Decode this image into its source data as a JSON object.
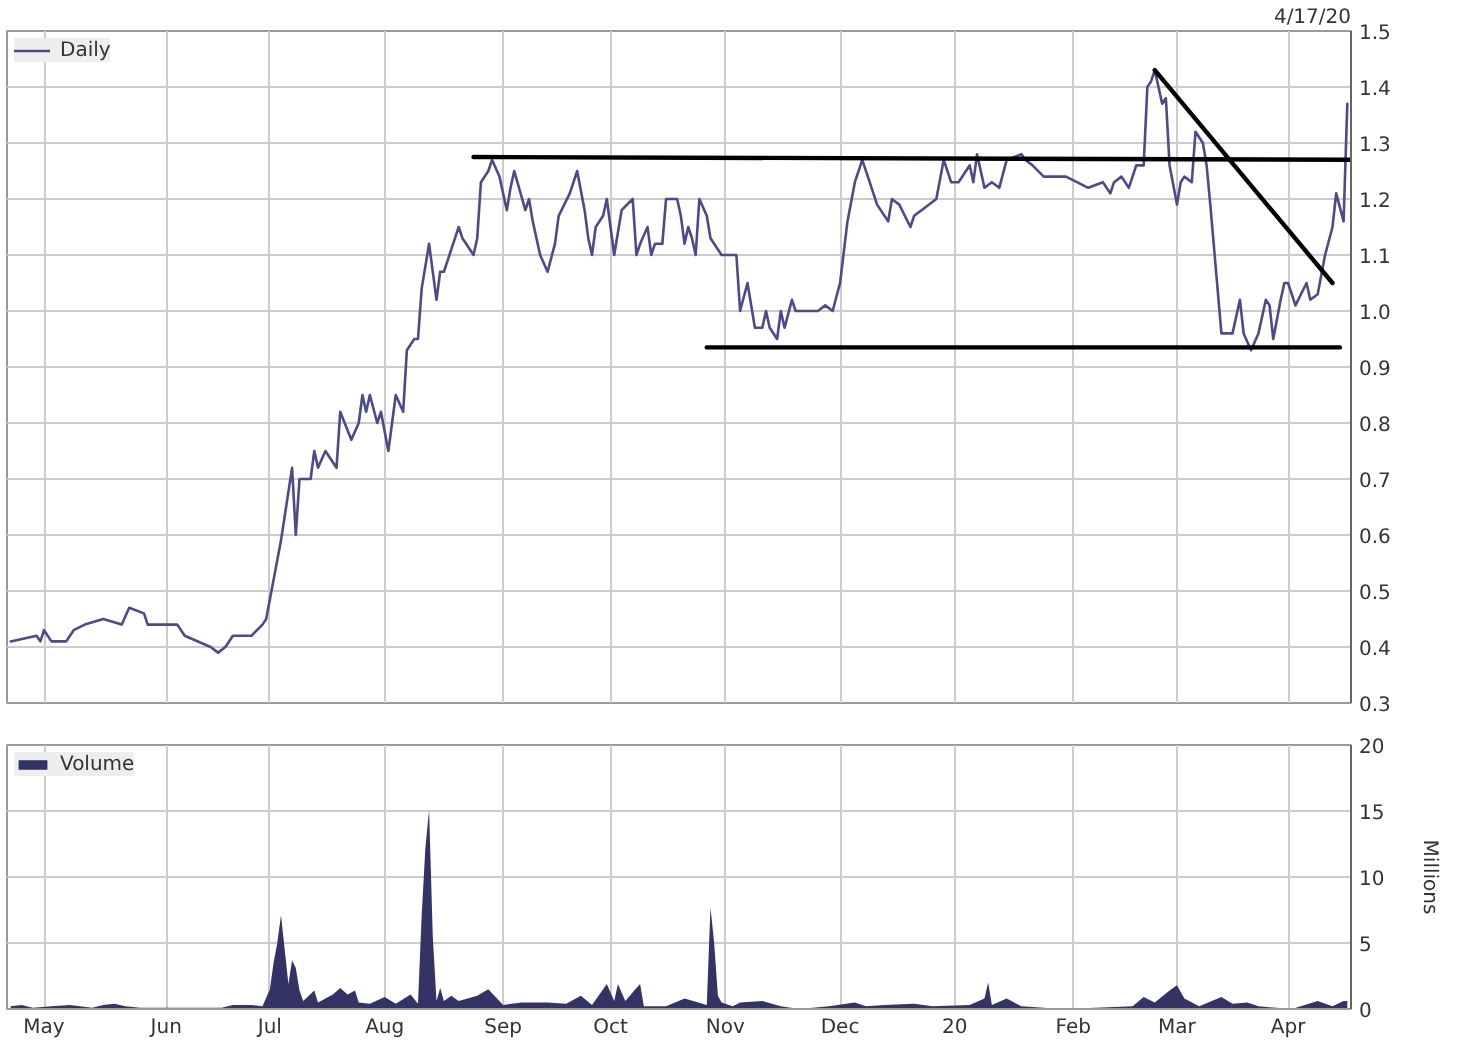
{
  "chart_data": [
    {
      "type": "line",
      "legend": "top left",
      "grid": true,
      "tick_labels": "y",
      "annotations": [
        "4/17/20"
      ],
      "xlim": [
        "2019-04-21",
        "2020-04-18"
      ],
      "ylim": [
        0.3,
        1.5
      ],
      "xticks": [
        {
          "value": "2019-05-01",
          "label": null
        },
        {
          "value": "2019-06-03",
          "label": null
        },
        {
          "value": "2019-07-01",
          "label": null
        },
        {
          "value": "2019-08-01",
          "label": null
        },
        {
          "value": "2019-09-02",
          "label": null
        },
        {
          "value": "2019-10-01",
          "label": null
        },
        {
          "value": "2019-11-01",
          "label": null
        },
        {
          "value": "2019-12-02",
          "label": null
        },
        {
          "value": "2020-01-02",
          "label": null
        },
        {
          "value": "2020-02-03",
          "label": null
        },
        {
          "value": "2020-03-02",
          "label": null
        },
        {
          "value": "2020-04-01",
          "label": null
        }
      ],
      "yticks": [
        0.3,
        0.4,
        0.5,
        0.6,
        0.7,
        0.8,
        0.9,
        {
          "value": 1,
          "label": "1.0"
        },
        1.1,
        1.2,
        1.3,
        1.4,
        1.5
      ],
      "series": [
        {
          "name": "Daily",
          "color": "#4b4b8a",
          "x": [
            "2019-04-22",
            "2019-04-29",
            "2019-04-30",
            "2019-05-01",
            "2019-05-03",
            "2019-05-07",
            "2019-05-09",
            "2019-05-12",
            "2019-05-17",
            "2019-05-22",
            "2019-05-24",
            "2019-05-28",
            "2019-05-29",
            "2019-06-02",
            "2019-06-06",
            "2019-06-08",
            "2019-06-15",
            "2019-06-17",
            "2019-06-19",
            "2019-06-21",
            "2019-06-26",
            "2019-06-29",
            "2019-06-30",
            "2019-07-02",
            "2019-07-04",
            "2019-07-07",
            "2019-07-08",
            "2019-07-09",
            "2019-07-12",
            "2019-07-13",
            "2019-07-14",
            "2019-07-16",
            "2019-07-19",
            "2019-07-20",
            "2019-07-23",
            "2019-07-25",
            "2019-07-26",
            "2019-07-27",
            "2019-07-28",
            "2019-07-30",
            "2019-07-31",
            "2019-08-02",
            "2019-08-04",
            "2019-08-06",
            "2019-08-07",
            "2019-08-09",
            "2019-08-10",
            "2019-08-11",
            "2019-08-13",
            "2019-08-15",
            "2019-08-16",
            "2019-08-17",
            "2019-08-20",
            "2019-08-21",
            "2019-08-22",
            "2019-08-23",
            "2019-08-25",
            "2019-08-26",
            "2019-08-27",
            "2019-08-29",
            "2019-08-30",
            "2019-09-01",
            "2019-09-03",
            "2019-09-04",
            "2019-09-05",
            "2019-09-08",
            "2019-09-09",
            "2019-09-10",
            "2019-09-12",
            "2019-09-14",
            "2019-09-16",
            "2019-09-17",
            "2019-09-20",
            "2019-09-22",
            "2019-09-24",
            "2019-09-25",
            "2019-09-26",
            "2019-09-27",
            "2019-09-29",
            "2019-09-30",
            "2019-10-02",
            "2019-10-04",
            "2019-10-07",
            "2019-10-08",
            "2019-10-09",
            "2019-10-11",
            "2019-10-12",
            "2019-10-13",
            "2019-10-15",
            "2019-10-16",
            "2019-10-19",
            "2019-10-20",
            "2019-10-21",
            "2019-10-22",
            "2019-10-23",
            "2019-10-24",
            "2019-10-25",
            "2019-10-27",
            "2019-10-28",
            "2019-10-31",
            "2019-11-04",
            "2019-11-05",
            "2019-11-07",
            "2019-11-09",
            "2019-11-11",
            "2019-11-12",
            "2019-11-13",
            "2019-11-15",
            "2019-11-16",
            "2019-11-17",
            "2019-11-19",
            "2019-11-20",
            "2019-11-26",
            "2019-11-28",
            "2019-11-30",
            "2019-12-02",
            "2019-12-04",
            "2019-12-06",
            "2019-12-08",
            "2019-12-10",
            "2019-12-12",
            "2019-12-15",
            "2019-12-16",
            "2019-12-18",
            "2019-12-21",
            "2019-12-22",
            "2019-12-24",
            "2019-12-28",
            "2019-12-30",
            "2020-01-01",
            "2020-01-03",
            "2020-01-05",
            "2020-01-06",
            "2020-01-07",
            "2020-01-08",
            "2020-01-10",
            "2020-01-12",
            "2020-01-14",
            "2020-01-16",
            "2020-01-20",
            "2020-01-21",
            "2020-01-23",
            "2020-01-26",
            "2020-02-01",
            "2020-02-04",
            "2020-02-07",
            "2020-02-11",
            "2020-02-13",
            "2020-02-14",
            "2020-02-16",
            "2020-02-18",
            "2020-02-20",
            "2020-02-22",
            "2020-02-23",
            "2020-02-24",
            "2020-02-25",
            "2020-02-26",
            "2020-02-27",
            "2020-02-28",
            "2020-02-29",
            "2020-03-02",
            "2020-03-03",
            "2020-03-04",
            "2020-03-06",
            "2020-03-07",
            "2020-03-09",
            "2020-03-10",
            "2020-03-11",
            "2020-03-14",
            "2020-03-17",
            "2020-03-19",
            "2020-03-20",
            "2020-03-22",
            "2020-03-24",
            "2020-03-26",
            "2020-03-27",
            "2020-03-28",
            "2020-03-30",
            "2020-03-31",
            "2020-04-01",
            "2020-04-03",
            "2020-04-06",
            "2020-04-07",
            "2020-04-09",
            "2020-04-11",
            "2020-04-13",
            "2020-04-14",
            "2020-04-16",
            "2020-04-17"
          ],
          "values": [
            0.41,
            0.42,
            0.41,
            0.43,
            0.41,
            0.41,
            0.43,
            0.44,
            0.45,
            0.44,
            0.47,
            0.46,
            0.44,
            0.44,
            0.44,
            0.42,
            0.4,
            0.39,
            0.4,
            0.42,
            0.42,
            0.44,
            0.45,
            0.52,
            0.59,
            0.72,
            0.6,
            0.7,
            0.7,
            0.75,
            0.72,
            0.75,
            0.72,
            0.82,
            0.77,
            0.8,
            0.85,
            0.82,
            0.85,
            0.8,
            0.82,
            0.75,
            0.85,
            0.82,
            0.93,
            0.95,
            0.95,
            1.04,
            1.12,
            1.02,
            1.07,
            1.07,
            1.13,
            1.15,
            1.13,
            1.12,
            1.1,
            1.13,
            1.23,
            1.25,
            1.27,
            1.24,
            1.18,
            1.22,
            1.25,
            1.18,
            1.2,
            1.16,
            1.1,
            1.07,
            1.12,
            1.17,
            1.21,
            1.25,
            1.18,
            1.13,
            1.1,
            1.15,
            1.17,
            1.2,
            1.1,
            1.18,
            1.2,
            1.1,
            1.12,
            1.15,
            1.1,
            1.12,
            1.12,
            1.2,
            1.2,
            1.17,
            1.12,
            1.15,
            1.13,
            1.1,
            1.2,
            1.17,
            1.13,
            1.1,
            1.1,
            1.0,
            1.05,
            0.97,
            0.97,
            1.0,
            0.97,
            0.95,
            1.0,
            0.97,
            1.02,
            1.0,
            1.0,
            1.01,
            1.0,
            1.05,
            1.16,
            1.23,
            1.27,
            1.23,
            1.19,
            1.16,
            1.2,
            1.19,
            1.15,
            1.17,
            1.18,
            1.2,
            1.27,
            1.23,
            1.23,
            1.25,
            1.26,
            1.23,
            1.28,
            1.22,
            1.23,
            1.22,
            1.27,
            1.28,
            1.27,
            1.26,
            1.24,
            1.24,
            1.23,
            1.22,
            1.23,
            1.21,
            1.23,
            1.24,
            1.22,
            1.26,
            1.26,
            1.4,
            1.41,
            1.43,
            1.4,
            1.37,
            1.38,
            1.26,
            1.19,
            1.23,
            1.24,
            1.23,
            1.32,
            1.3,
            1.26,
            1.19,
            0.96,
            0.96,
            1.02,
            0.96,
            0.93,
            0.96,
            1.02,
            1.01,
            0.95,
            1.02,
            1.05,
            1.05,
            1.01,
            1.05,
            1.02,
            1.03,
            1.1,
            1.15,
            1.21,
            1.16,
            1.37
          ]
        },
        {
          "color": "#000000",
          "x": [
            "2019-08-25",
            "2020-04-18"
          ],
          "values": [
            1.275,
            1.27
          ]
        },
        {
          "color": "#000000",
          "x": [
            "2019-10-27",
            "2020-04-15"
          ],
          "values": [
            0.935,
            0.935
          ]
        },
        {
          "color": "#000000",
          "x": [
            "2020-02-25",
            "2020-04-13"
          ],
          "values": [
            1.43,
            1.05
          ]
        }
      ]
    },
    {
      "type": "area",
      "legend": "top left",
      "grid": true,
      "ylabel": "Millions",
      "xlim": [
        "2019-04-21",
        "2020-04-18"
      ],
      "ylim": [
        0,
        20
      ],
      "xticks": [
        {
          "value": "2019-05-01",
          "label": "May"
        },
        {
          "value": "2019-06-03",
          "label": "Jun"
        },
        {
          "value": "2019-07-01",
          "label": "Jul"
        },
        {
          "value": "2019-08-01",
          "label": "Aug"
        },
        {
          "value": "2019-09-02",
          "label": "Sep"
        },
        {
          "value": "2019-10-01",
          "label": "Oct"
        },
        {
          "value": "2019-11-01",
          "label": "Nov"
        },
        {
          "value": "2019-12-02",
          "label": "Dec"
        },
        {
          "value": "2020-01-02",
          "label": "20"
        },
        {
          "value": "2020-02-03",
          "label": "Feb"
        },
        {
          "value": "2020-03-02",
          "label": "Mar"
        },
        {
          "value": "2020-04-01",
          "label": "Apr"
        }
      ],
      "yticks": [
        0,
        5,
        10,
        15,
        20
      ],
      "series": [
        {
          "name": "Volume",
          "color": "#333366",
          "x": [
            "2019-04-22",
            "2019-04-25",
            "2019-04-28",
            "2019-05-03",
            "2019-05-08",
            "2019-05-14",
            "2019-05-17",
            "2019-05-20",
            "2019-05-23",
            "2019-05-27",
            "2019-06-07",
            "2019-06-18",
            "2019-06-21",
            "2019-06-26",
            "2019-06-29",
            "2019-07-01",
            "2019-07-02",
            "2019-07-03",
            "2019-07-04",
            "2019-07-05",
            "2019-07-06",
            "2019-07-07",
            "2019-07-08",
            "2019-07-09",
            "2019-07-10",
            "2019-07-13",
            "2019-07-14",
            "2019-07-18",
            "2019-07-20",
            "2019-07-22",
            "2019-07-24",
            "2019-07-25",
            "2019-07-28",
            "2019-08-01",
            "2019-08-04",
            "2019-08-08",
            "2019-08-10",
            "2019-08-11",
            "2019-08-12",
            "2019-08-13",
            "2019-08-14",
            "2019-08-15",
            "2019-08-16",
            "2019-08-17",
            "2019-08-19",
            "2019-08-21",
            "2019-08-26",
            "2019-08-29",
            "2019-09-02",
            "2019-09-07",
            "2019-09-14",
            "2019-09-19",
            "2019-09-23",
            "2019-09-26",
            "2019-09-30",
            "2019-10-02",
            "2019-10-03",
            "2019-10-05",
            "2019-10-08",
            "2019-10-09",
            "2019-10-10",
            "2019-10-16",
            "2019-10-21",
            "2019-10-27",
            "2019-10-28",
            "2019-10-29",
            "2019-10-30",
            "2019-10-31",
            "2019-11-03",
            "2019-11-05",
            "2019-11-11",
            "2019-11-16",
            "2019-11-21",
            "2019-11-29",
            "2019-12-06",
            "2019-12-09",
            "2019-12-14",
            "2019-12-22",
            "2019-12-27",
            "2020-01-06",
            "2020-01-10",
            "2020-01-11",
            "2020-01-12",
            "2020-01-16",
            "2020-01-20",
            "2020-01-31",
            "2020-02-09",
            "2020-02-19",
            "2020-02-22",
            "2020-02-25",
            "2020-02-29",
            "2020-03-02",
            "2020-03-04",
            "2020-03-08",
            "2020-03-14",
            "2020-03-17",
            "2020-03-21",
            "2020-03-24",
            "2020-04-02",
            "2020-04-09",
            "2020-04-13",
            "2020-04-16",
            "2020-04-17"
          ],
          "values": [
            0.2,
            0.3,
            0.1,
            0.2,
            0.3,
            0.1,
            0.3,
            0.4,
            0.2,
            0.1,
            0.1,
            0.1,
            0.3,
            0.3,
            0.2,
            1.5,
            3.5,
            5.0,
            7.1,
            4.5,
            1.9,
            3.7,
            3.1,
            1.4,
            0.6,
            1.4,
            0.5,
            1.1,
            1.6,
            1.1,
            1.4,
            0.5,
            0.4,
            0.9,
            0.4,
            1.1,
            0.4,
            7.1,
            12.2,
            15.1,
            5.5,
            0.6,
            1.6,
            0.6,
            1.0,
            0.6,
            1.0,
            1.5,
            0.3,
            0.5,
            0.5,
            0.4,
            1.0,
            0.3,
            1.9,
            0.6,
            1.9,
            0.6,
            1.6,
            1.9,
            0.2,
            0.2,
            0.8,
            0.3,
            7.7,
            5.0,
            1.0,
            0.5,
            0.2,
            0.5,
            0.6,
            0.2,
            0,
            0.2,
            0.5,
            0.2,
            0.3,
            0.4,
            0.2,
            0.3,
            0.8,
            2.0,
            0.3,
            0.8,
            0.2,
            0,
            0.1,
            0.2,
            0.9,
            0.5,
            1.4,
            1.8,
            0.8,
            0.2,
            0.9,
            0.4,
            0.5,
            0.2,
            0,
            0.6,
            0.2,
            0.6,
            0.6
          ]
        }
      ]
    }
  ]
}
